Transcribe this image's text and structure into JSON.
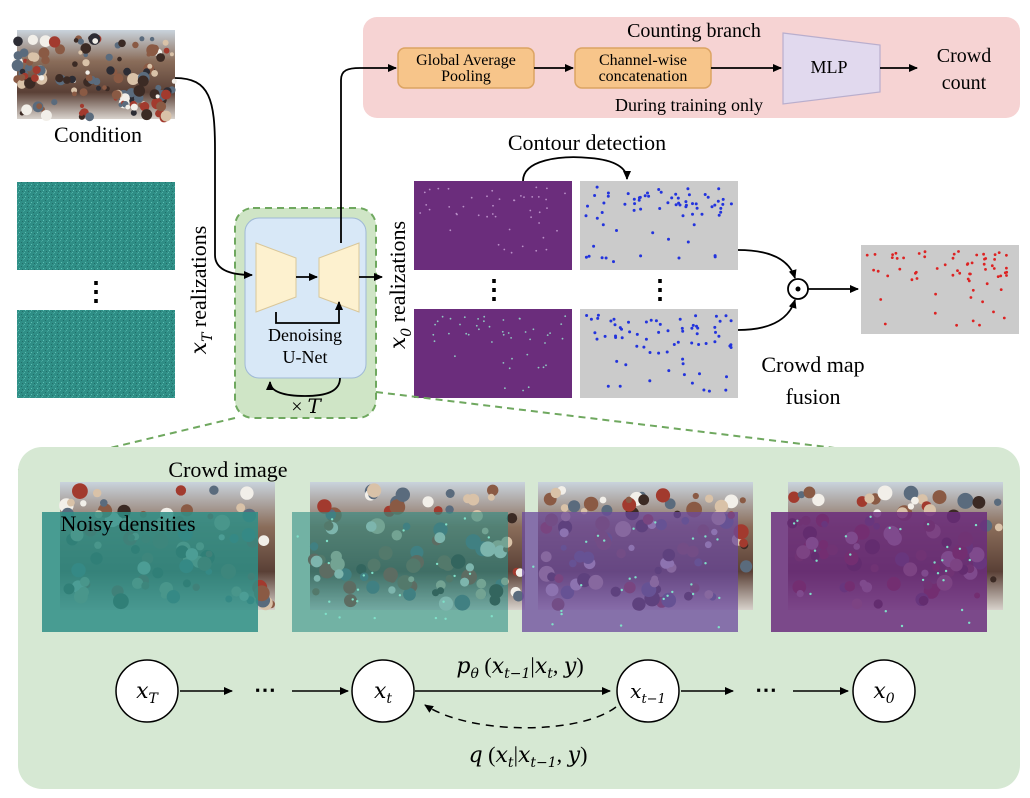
{
  "counting_branch": {
    "title": "Counting branch",
    "gap_label": "Global Average Pooling",
    "concat_label": "Channel-wise concatenation",
    "mlp_label": "MLP",
    "output_label": "Crowd count",
    "note": "During training only"
  },
  "condition_label": "Condition",
  "xt_label_var": "x",
  "xt_label_sub": "T",
  "xt_label_text": " realizations",
  "x0_label_var": "x",
  "x0_label_sub": "0",
  "x0_label_text": " realizations",
  "ellipsis": "⋮",
  "unet": {
    "line1": "Denoising",
    "line2": "U-Net",
    "loop_label": "× T"
  },
  "contour_label": "Contour detection",
  "fusion_label": "Crowd map fusion",
  "fusion_op": "⊙",
  "zoom": {
    "crowd_image_label": "Crowd image",
    "noisy_label": "Noisy densities",
    "chain": {
      "nodes": [
        {
          "var": "x",
          "sub": "T"
        },
        {
          "var": "x",
          "sub": "t"
        },
        {
          "var": "x",
          "sub": "t−1"
        },
        {
          "var": "x",
          "sub": "0"
        }
      ],
      "dots": "⋯",
      "forward_label": "p_θ (x_{t−1} | x_t, y)",
      "backward_label": "q (x_t | x_{t−1}, y)"
    }
  },
  "colors": {
    "counting_bg": "#f6d3d3",
    "box_orange": "#f7c58a",
    "box_orange_border": "#dca463",
    "mlp": "#e1d9ee",
    "unet_outer": "#cfe5c6",
    "unet_inner": "#d8e8f7",
    "unet_block": "#fdf1cf",
    "zoom_bg": "#d6e8d3",
    "noise": "#2e8f85",
    "density": "#6b2d7c",
    "map_bg": "#cbcbcb",
    "dot_blue": "#2233dd",
    "dot_red": "#dd2222"
  }
}
